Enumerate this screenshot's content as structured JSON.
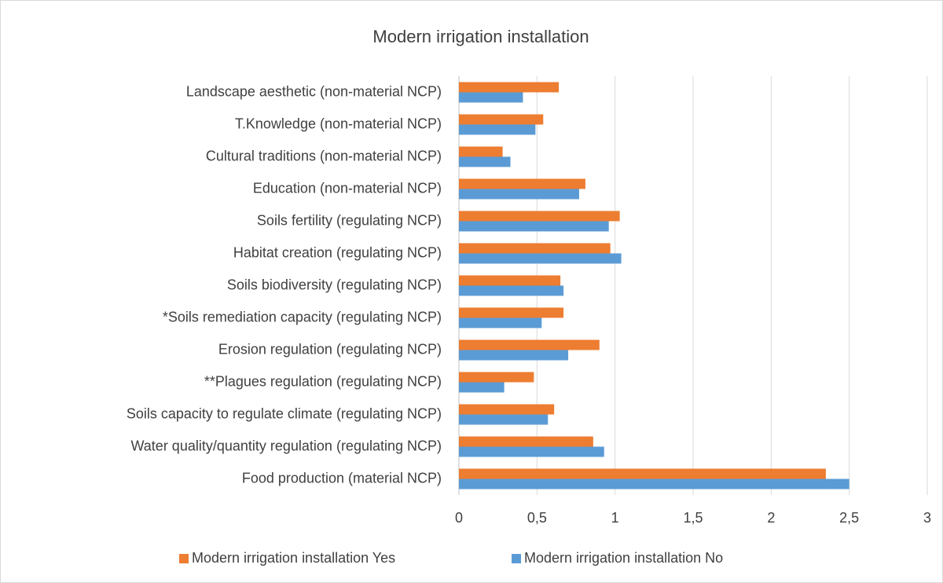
{
  "chart_data": {
    "type": "hbar",
    "title": "Modern irrigation installation",
    "categories": [
      "Landscape aesthetic (non-material NCP)",
      "T.Knowledge (non-material NCP)",
      "Cultural traditions (non-material NCP)",
      "Education (non-material NCP)",
      "Soils fertility (regulating NCP)",
      "Habitat creation (regulating NCP)",
      "Soils biodiversity (regulating NCP)",
      "*Soils remediation capacity (regulating NCP)",
      "Erosion regulation (regulating NCP)",
      "**Plagues regulation  (regulating NCP)",
      "Soils capacity to regulate climate (regulating NCP)",
      "Water quality/quantity regulation (regulating NCP)",
      "Food production (material NCP)"
    ],
    "series": [
      {
        "name": "Modern irrigation installation Yes",
        "color": "#ed7d31",
        "values": [
          0.64,
          0.54,
          0.28,
          0.81,
          1.03,
          0.97,
          0.65,
          0.67,
          0.9,
          0.48,
          0.61,
          0.86,
          2.35
        ]
      },
      {
        "name": "Modern irrigation installation No",
        "color": "#5b9bd5",
        "values": [
          0.41,
          0.49,
          0.33,
          0.77,
          0.96,
          1.04,
          0.67,
          0.53,
          0.7,
          0.29,
          0.57,
          0.93,
          2.5
        ]
      }
    ],
    "xlim": [
      0,
      3
    ],
    "xticks": [
      0,
      {
        "value": 0.5,
        "label": "0,5"
      },
      1,
      {
        "value": 1.5,
        "label": "1,5"
      },
      2,
      {
        "value": 2.5,
        "label": "2,5"
      },
      3
    ],
    "grid": true,
    "legend": "bottom"
  }
}
